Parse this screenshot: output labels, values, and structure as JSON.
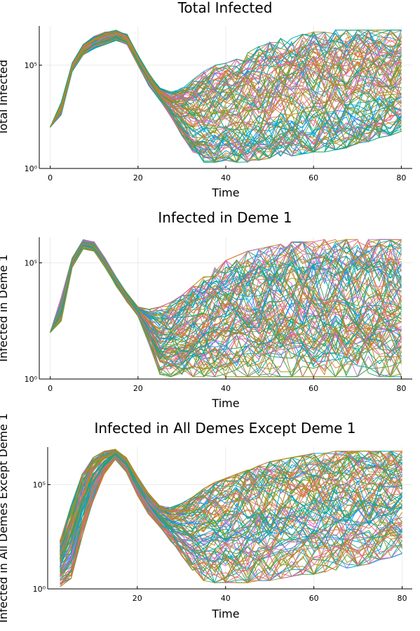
{
  "figure": {
    "palette": [
      "#009af9",
      "#e26f46",
      "#3da44d",
      "#c271d2",
      "#ac8d18",
      "#00a9ad",
      "#ed5e93",
      "#c68225",
      "#00a98d",
      "#8e971d"
    ]
  },
  "chart_data": [
    {
      "type": "line",
      "title": "Total Infected",
      "xlabel": "Time",
      "ylabel": "Total Infected",
      "x_ticks": [
        "0",
        "20",
        "40",
        "60",
        "80"
      ],
      "x_tick_values": [
        0,
        20,
        40,
        60,
        80
      ],
      "y_ticks": [
        "10⁰",
        "10⁵"
      ],
      "y_tick_values": [
        0,
        5
      ],
      "xlim": [
        -2.5,
        82.5
      ],
      "ylim_log10": [
        0,
        6.9
      ],
      "y_scale": "log10",
      "grid": true,
      "legend": "none",
      "series_count": 100,
      "x": [
        0,
        2.5,
        5,
        7.5,
        10,
        12.5,
        15,
        17.5,
        20,
        22.5,
        25,
        27.5,
        30,
        32.5,
        35,
        37.5,
        40,
        42.5,
        45,
        47.5,
        50,
        52.5,
        55,
        57.5,
        60,
        62.5,
        65,
        67.5,
        70,
        72.5,
        75,
        77.5,
        80
      ],
      "envelope_log10": {
        "upper": [
          2,
          3.2,
          5.1,
          6.0,
          6.4,
          6.6,
          6.7,
          6.5,
          5.5,
          4.6,
          3.9,
          3.7,
          3.9,
          4.3,
          4.7,
          5.0,
          5.1,
          5.3,
          5.6,
          5.9,
          6.1,
          6.3,
          6.4,
          6.5,
          6.6,
          6.6,
          6.7,
          6.7,
          6.7,
          6.7,
          6.7,
          6.7,
          6.7
        ],
        "lower": [
          2,
          2.6,
          4.7,
          5.5,
          5.8,
          6.0,
          6.2,
          6.0,
          5.0,
          4.0,
          3.3,
          2.5,
          1.6,
          0.8,
          0.3,
          0.3,
          0.4,
          0.3,
          0.3,
          0.4,
          0.5,
          0.6,
          0.6,
          0.7,
          0.8,
          0.8,
          0.9,
          1.0,
          1.2,
          1.3,
          1.5,
          1.6,
          1.8
        ]
      }
    },
    {
      "type": "line",
      "title": "Infected in Deme 1",
      "xlabel": "Time",
      "ylabel": "Infected in Deme 1",
      "x_ticks": [
        "0",
        "20",
        "40",
        "60",
        "80"
      ],
      "x_tick_values": [
        0,
        20,
        40,
        60,
        80
      ],
      "y_ticks": [
        "10⁰",
        "10⁵"
      ],
      "y_tick_values": [
        0,
        5
      ],
      "xlim": [
        -2.5,
        82.5
      ],
      "ylim_log10": [
        0,
        6.1
      ],
      "y_scale": "log10",
      "grid": true,
      "legend": "none",
      "series_count": 100,
      "x": [
        0,
        2.5,
        5,
        7.5,
        10,
        12.5,
        15,
        17.5,
        20,
        22.5,
        25,
        27.5,
        30,
        32.5,
        35,
        37.5,
        40,
        42.5,
        45,
        47.5,
        50,
        52.5,
        55,
        57.5,
        60,
        62.5,
        65,
        67.5,
        70,
        72.5,
        75,
        77.5,
        80
      ],
      "envelope_log10": {
        "upper": [
          2,
          3.5,
          5.2,
          6.0,
          5.9,
          5.2,
          4.4,
          3.7,
          3.1,
          3.0,
          3.1,
          3.3,
          3.6,
          4.0,
          4.4,
          4.8,
          5.1,
          5.3,
          5.5,
          5.6,
          5.7,
          5.8,
          5.9,
          5.9,
          5.9,
          6.0,
          6.0,
          6.0,
          6.0,
          6.0,
          6.0,
          6.0,
          6.0
        ],
        "lower": [
          2,
          2.5,
          4.8,
          5.6,
          5.5,
          4.8,
          4.0,
          3.3,
          2.7,
          1.5,
          0.2,
          0.1,
          0.1,
          0.1,
          0.1,
          0.1,
          0.1,
          0.1,
          0.1,
          0.1,
          0.1,
          0.1,
          0.1,
          0.1,
          0.1,
          0.1,
          0.1,
          0.1,
          0.1,
          0.1,
          0.1,
          0.1,
          0.1
        ]
      }
    },
    {
      "type": "line",
      "title": "Infected in All Demes Except Deme 1",
      "xlabel": "Time",
      "ylabel": "Infected in All Demes Except Deme 1",
      "x_ticks": [
        "20",
        "40",
        "60",
        "80"
      ],
      "x_tick_values": [
        20,
        40,
        60,
        80
      ],
      "y_ticks": [
        "10⁰",
        "10⁵"
      ],
      "y_tick_values": [
        0,
        5
      ],
      "xlim": [
        -0.3,
        82.3
      ],
      "ylim_log10": [
        0,
        6.8
      ],
      "y_scale": "log10",
      "grid": true,
      "legend": "none",
      "series_count": 100,
      "x": [
        2.5,
        5,
        7.5,
        10,
        12.5,
        15,
        17.5,
        20,
        22.5,
        25,
        27.5,
        30,
        32.5,
        35,
        37.5,
        40,
        42.5,
        45,
        47.5,
        50,
        52.5,
        55,
        57.5,
        60,
        62.5,
        65,
        67.5,
        70,
        72.5,
        75,
        77.5,
        80
      ],
      "envelope_log10": {
        "upper": [
          2.3,
          4.0,
          5.5,
          6.3,
          6.6,
          6.7,
          6.3,
          5.4,
          4.6,
          4.0,
          3.9,
          4.1,
          4.4,
          4.8,
          5.1,
          5.3,
          5.5,
          5.7,
          5.9,
          6.1,
          6.2,
          6.3,
          6.4,
          6.5,
          6.5,
          6.6,
          6.6,
          6.6,
          6.6,
          6.6,
          6.6,
          6.6
        ],
        "lower": [
          0.1,
          0.5,
          2.5,
          4.2,
          5.5,
          6.2,
          5.6,
          4.5,
          3.6,
          3.0,
          2.3,
          1.6,
          0.9,
          0.4,
          0.3,
          0.3,
          0.3,
          0.3,
          0.4,
          0.4,
          0.5,
          0.6,
          0.7,
          0.7,
          0.8,
          0.9,
          1.0,
          1.1,
          1.2,
          1.4,
          1.5,
          1.7
        ]
      }
    }
  ]
}
